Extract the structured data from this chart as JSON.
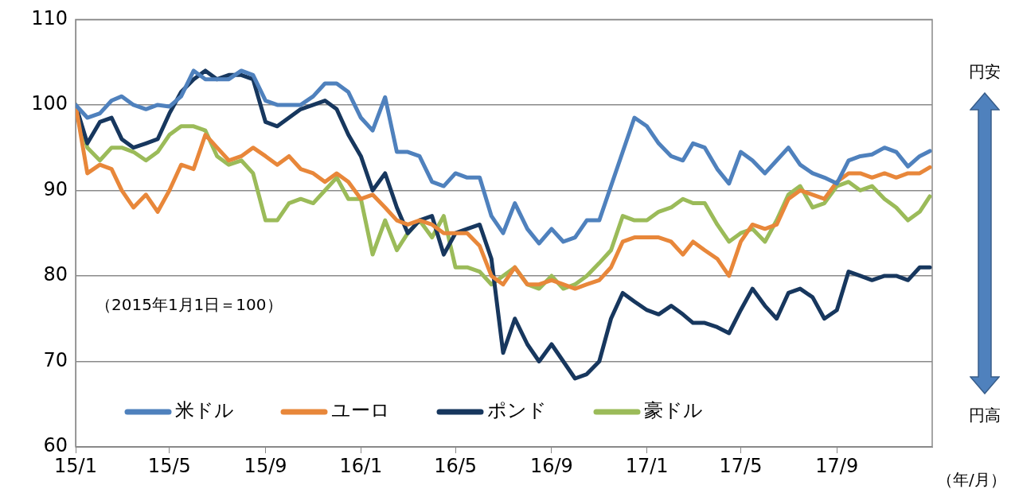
{
  "chart_data": {
    "type": "line",
    "xlabel": "（年/月）",
    "annotations": [
      "（2015年1月1日＝100）",
      "円安",
      "円高"
    ],
    "x": [
      "2015-01-01",
      "2015-01-16",
      "2015-02-01",
      "2015-02-16",
      "2015-03-01",
      "2015-03-16",
      "2015-04-01",
      "2015-04-16",
      "2015-05-01",
      "2015-05-16",
      "2015-06-01",
      "2015-06-16",
      "2015-07-01",
      "2015-07-16",
      "2015-08-01",
      "2015-08-16",
      "2015-09-01",
      "2015-09-16",
      "2015-10-01",
      "2015-10-16",
      "2015-11-01",
      "2015-11-16",
      "2015-12-01",
      "2015-12-16",
      "2016-01-01",
      "2016-01-16",
      "2016-02-01",
      "2016-02-16",
      "2016-03-01",
      "2016-03-16",
      "2016-04-01",
      "2016-04-16",
      "2016-05-01",
      "2016-05-16",
      "2016-06-01",
      "2016-06-16",
      "2016-07-01",
      "2016-07-16",
      "2016-08-01",
      "2016-08-16",
      "2016-09-01",
      "2016-09-16",
      "2016-10-01",
      "2016-10-16",
      "2016-11-01",
      "2016-11-16",
      "2016-12-01",
      "2016-12-16",
      "2017-01-01",
      "2017-01-16",
      "2017-02-01",
      "2017-02-16",
      "2017-03-01",
      "2017-03-16",
      "2017-04-01",
      "2017-04-16",
      "2017-05-01",
      "2017-05-16",
      "2017-06-01",
      "2017-06-16",
      "2017-07-01",
      "2017-07-16",
      "2017-08-01",
      "2017-08-16",
      "2017-09-01",
      "2017-09-16",
      "2017-10-01",
      "2017-10-16",
      "2017-11-01",
      "2017-11-16",
      "2017-12-01",
      "2017-12-16",
      "2017-12-29"
    ],
    "series": [
      {
        "name": "米ドル",
        "color": "#4f81bd",
        "values": [
          100,
          98.5,
          99,
          100.5,
          101,
          100,
          99.5,
          100,
          99.8,
          101,
          104,
          103,
          103,
          103,
          104,
          103.5,
          100.5,
          100,
          100,
          100,
          101,
          102.5,
          102.5,
          101.5,
          98.5,
          97,
          100.9,
          94.5,
          94.5,
          94,
          91,
          90.5,
          92,
          91.5,
          91.5,
          87,
          85,
          88.5,
          85.5,
          83.8,
          85.5,
          84,
          84.5,
          86.5,
          86.5,
          90.5,
          94.5,
          98.5,
          97.5,
          95.5,
          94,
          93.5,
          95.5,
          95,
          92.5,
          90.8,
          94.5,
          93.5,
          92,
          93.5,
          95,
          93,
          92,
          91.5,
          90.8,
          93.5,
          94,
          94.2,
          95,
          94.5,
          92.8,
          94,
          94.6
        ]
      },
      {
        "name": "ユーロ",
        "color": "#e8873a",
        "values": [
          100,
          92,
          93,
          92.5,
          90,
          88,
          89.5,
          87.5,
          90,
          93,
          92.5,
          96.5,
          95,
          93.5,
          94,
          95,
          94,
          93,
          94,
          92.5,
          92,
          91,
          92,
          91,
          89,
          89.5,
          88,
          86.5,
          86,
          86.5,
          86,
          85,
          85,
          85,
          83.5,
          80,
          79,
          81,
          79,
          79,
          79.5,
          79,
          78.5,
          79,
          79.5,
          81,
          84,
          84.5,
          84.5,
          84.5,
          84,
          82.5,
          84,
          83,
          82,
          80,
          84,
          86,
          85.5,
          86,
          89,
          90,
          89.5,
          89,
          91,
          92,
          92,
          91.5,
          92,
          91.5,
          92,
          92,
          92.7
        ]
      },
      {
        "name": "ポンド",
        "color": "#17375e",
        "values": [
          100,
          95.5,
          98,
          98.5,
          96,
          95,
          95.5,
          96,
          99,
          101.5,
          103,
          104,
          103,
          103.5,
          103.5,
          103,
          98,
          97.5,
          98.5,
          99.5,
          100,
          100.5,
          99.5,
          96.5,
          94,
          90,
          92,
          88,
          85,
          86.5,
          87,
          82.5,
          85,
          85.5,
          86,
          82,
          71,
          75,
          72,
          70,
          72,
          70,
          68,
          68.5,
          70,
          75,
          78,
          77,
          76,
          75.5,
          76.5,
          75.5,
          74.5,
          74.5,
          74,
          73.3,
          76,
          78.5,
          76.5,
          75,
          78,
          78.5,
          77.5,
          75,
          76,
          80.5,
          80,
          79.5,
          80,
          80,
          79.5,
          81,
          81
        ]
      },
      {
        "name": "豪ドル",
        "color": "#9bbb59",
        "values": [
          100,
          95,
          93.5,
          95,
          95,
          94.5,
          93.5,
          94.5,
          96.5,
          97.5,
          97.5,
          97,
          94,
          93,
          93.5,
          92,
          86.5,
          86.5,
          88.5,
          89,
          88.5,
          90,
          91.5,
          89,
          89,
          82.5,
          86.5,
          83,
          85,
          86.5,
          84.5,
          87,
          81,
          81,
          80.5,
          79,
          80,
          81,
          79,
          78.5,
          80,
          78.5,
          79,
          80,
          81.5,
          83,
          87,
          86.5,
          86.5,
          87.5,
          88,
          89,
          88.5,
          88.5,
          86,
          84,
          85,
          85.5,
          84,
          86.5,
          89.5,
          90.5,
          88,
          88.5,
          90.5,
          91,
          90,
          90.5,
          89,
          88,
          86.5,
          87.5,
          89.3
        ]
      }
    ],
    "xlim": [
      "2015-01-01",
      "2018-01-01"
    ],
    "xticks": [
      {
        "value": "2015-01-01",
        "label": "15/1"
      },
      {
        "value": "2015-05-01",
        "label": "15/5"
      },
      {
        "value": "2015-09-01",
        "label": "15/9"
      },
      {
        "value": "2016-01-01",
        "label": "16/1"
      },
      {
        "value": "2016-05-01",
        "label": "16/5"
      },
      {
        "value": "2016-09-01",
        "label": "16/9"
      },
      {
        "value": "2017-01-01",
        "label": "17/1"
      },
      {
        "value": "2017-05-01",
        "label": "17/5"
      },
      {
        "value": "2017-09-01",
        "label": "17/9"
      }
    ],
    "ylim": [
      60,
      110
    ],
    "yticks": [
      60,
      70,
      80,
      90,
      100,
      110
    ],
    "grid": "y",
    "legend": "bottom left",
    "marker": "none",
    "line_style": "solid"
  }
}
